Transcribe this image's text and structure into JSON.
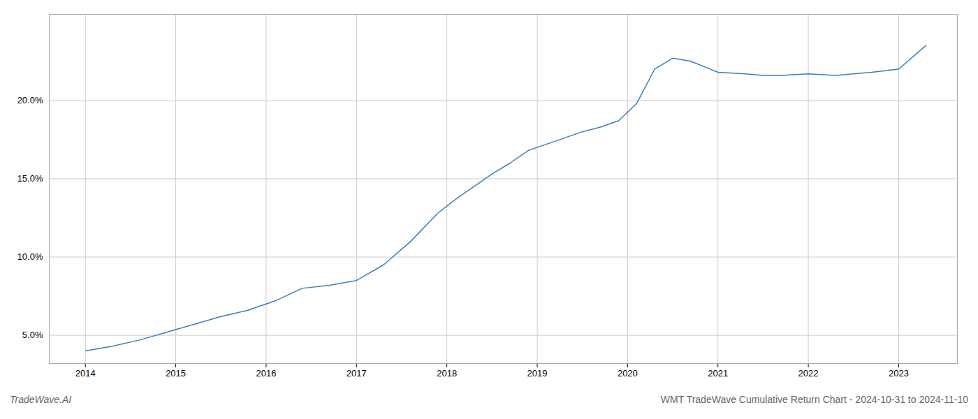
{
  "chart_data": {
    "type": "line",
    "x": [
      2014.0,
      2014.3,
      2014.6,
      2014.9,
      2015.2,
      2015.5,
      2015.8,
      2016.1,
      2016.4,
      2016.7,
      2017.0,
      2017.3,
      2017.6,
      2017.9,
      2018.1,
      2018.3,
      2018.5,
      2018.7,
      2018.9,
      2019.1,
      2019.3,
      2019.5,
      2019.7,
      2019.9,
      2020.1,
      2020.3,
      2020.5,
      2020.7,
      2021.0,
      2021.3,
      2021.5,
      2021.7,
      2022.0,
      2022.3,
      2022.5,
      2022.7,
      2023.0,
      2023.3
    ],
    "values": [
      4.0,
      4.3,
      4.7,
      5.2,
      5.7,
      6.2,
      6.6,
      7.2,
      8.0,
      8.2,
      8.5,
      9.5,
      11.0,
      12.8,
      13.7,
      14.5,
      15.3,
      16.0,
      16.8,
      17.2,
      17.6,
      18.0,
      18.3,
      18.7,
      19.8,
      22.0,
      22.7,
      22.5,
      21.8,
      21.7,
      21.6,
      21.6,
      21.7,
      21.6,
      21.7,
      21.8,
      22.0,
      23.5
    ],
    "color": "#3a7ebf",
    "xlim": [
      2013.6,
      2023.65
    ],
    "xticks": [
      2014,
      2015,
      2016,
      2017,
      2018,
      2019,
      2020,
      2021,
      2022,
      2023
    ],
    "ylim": [
      3.2,
      25.5
    ],
    "yticks": [
      {
        "value": 5.0,
        "label": "5.0%"
      },
      {
        "value": 10.0,
        "label": "10.0%"
      },
      {
        "value": 15.0,
        "label": "15.0%"
      },
      {
        "value": 20.0,
        "label": "20.0%"
      }
    ],
    "grid": true,
    "annotations": [
      "TradeWave.AI",
      "WMT TradeWave Cumulative Return Chart - 2024-10-31 to 2024-11-10"
    ]
  }
}
